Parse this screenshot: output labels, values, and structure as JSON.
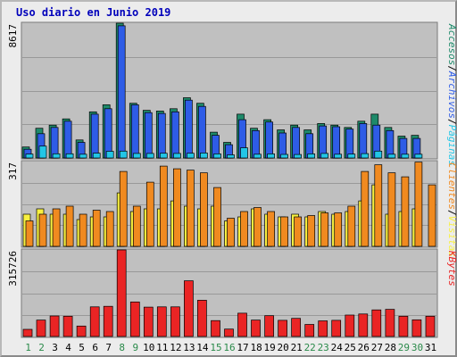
{
  "chart_data": {
    "type": "bar",
    "title": "Uso diario en Junio 2019",
    "categories": [
      "1",
      "2",
      "3",
      "4",
      "5",
      "6",
      "7",
      "8",
      "9",
      "10",
      "11",
      "12",
      "13",
      "14",
      "15",
      "16",
      "17",
      "18",
      "19",
      "20",
      "21",
      "22",
      "23",
      "24",
      "25",
      "26",
      "27",
      "28",
      "29",
      "30",
      "31"
    ],
    "weekend_days": [
      "1",
      "2",
      "8",
      "9",
      "15",
      "16",
      "22",
      "23",
      "29",
      "30"
    ],
    "grid": true,
    "colors": {
      "frame": "#ececec",
      "plot_bg": "#c0c0c0",
      "grid": "#999999",
      "paginas": "#22c6e6",
      "archivos": "#2e5ce6",
      "accesos": "#1e8a6a",
      "visitas": "#f8f040",
      "clientes": "#f08a20",
      "kbytes": "#ea2424",
      "weekday_label": "#000000",
      "weekend_label": "#2a8a4a",
      "title": "#0000bb"
    },
    "panels": [
      {
        "key": "hits",
        "ymax_label": "8617",
        "ylim": [
          0,
          8617
        ],
        "series": [
          {
            "name": "Accesos",
            "color": "#1e8a6a",
            "values": [
              700,
              1900,
              2100,
              2500,
              1150,
              2950,
              3400,
              8617,
              3500,
              3050,
              3000,
              3150,
              3850,
              3500,
              1650,
              1000,
              2800,
              1900,
              2450,
              1800,
              2100,
              1800,
              2200,
              2100,
              1950,
              2350,
              2800,
              1950,
              1400,
              1450,
              0
            ]
          },
          {
            "name": "Archivos",
            "color": "#2e5ce6",
            "values": [
              560,
              1550,
              1950,
              2350,
              1000,
              2800,
              3150,
              8450,
              3400,
              2900,
              2850,
              2950,
              3700,
              3300,
              1450,
              850,
              2450,
              1750,
              2300,
              1600,
              1950,
              1550,
              2050,
              2000,
              1850,
              2200,
              2100,
              1750,
              1250,
              1250,
              0
            ]
          },
          {
            "name": "Páginas",
            "color": "#22c6e6",
            "values": [
              250,
              760,
              270,
              270,
              240,
              310,
              430,
              440,
              290,
              290,
              300,
              290,
              300,
              320,
              260,
              200,
              650,
              240,
              260,
              230,
              220,
              260,
              290,
              240,
              250,
              280,
              440,
              240,
              240,
              240,
              0
            ]
          }
        ]
      },
      {
        "key": "visits",
        "ymax_label": "317",
        "ylim": [
          0,
          317
        ],
        "series": [
          {
            "name": "Visitas",
            "color": "#f8f040",
            "values": [
              120,
              140,
              120,
              120,
              100,
              110,
              110,
              200,
              130,
              140,
              140,
              170,
              150,
              140,
              150,
              95,
              110,
              140,
              120,
              110,
              120,
              110,
              130,
              120,
              130,
              170,
              230,
              120,
              130,
              140,
              0
            ]
          },
          {
            "name": "Clientes",
            "color": "#f08a20",
            "values": [
              95,
              120,
              140,
              150,
              120,
              135,
              130,
              280,
              150,
              240,
              300,
              290,
              285,
              275,
              220,
              105,
              130,
              145,
              130,
              110,
              110,
              115,
              125,
              125,
              150,
              280,
              305,
              275,
              260,
              315,
              230
            ]
          }
        ]
      },
      {
        "key": "kbytes",
        "ymax_label": "315726",
        "ylim": [
          0,
          315726
        ],
        "series": [
          {
            "name": "KBytes",
            "color": "#ea2424",
            "values": [
              26000,
              60000,
              75000,
              74000,
              38000,
              108000,
              110000,
              315726,
              126000,
              107000,
              108000,
              108000,
              203000,
              132000,
              58000,
              27000,
              85000,
              60000,
              76000,
              59000,
              66000,
              44000,
              57000,
              59000,
              78000,
              82000,
              97000,
              99000,
              74000,
              61000,
              74000
            ]
          }
        ]
      }
    ],
    "right_legends": [
      [
        {
          "text": "Accesos",
          "color": "#1e8a6a"
        },
        {
          "text": "/",
          "color": "#000000"
        },
        {
          "text": "Archivos",
          "color": "#2e5ce6"
        },
        {
          "text": "/",
          "color": "#000000"
        },
        {
          "text": "Páginas",
          "color": "#22c6e6"
        }
      ],
      [
        {
          "text": "Clientes",
          "color": "#f08a20"
        },
        {
          "text": "/",
          "color": "#000000"
        },
        {
          "text": "Visitas",
          "color": "#f8f040"
        }
      ],
      [
        {
          "text": "KBytes",
          "color": "#ea2424"
        }
      ]
    ]
  }
}
